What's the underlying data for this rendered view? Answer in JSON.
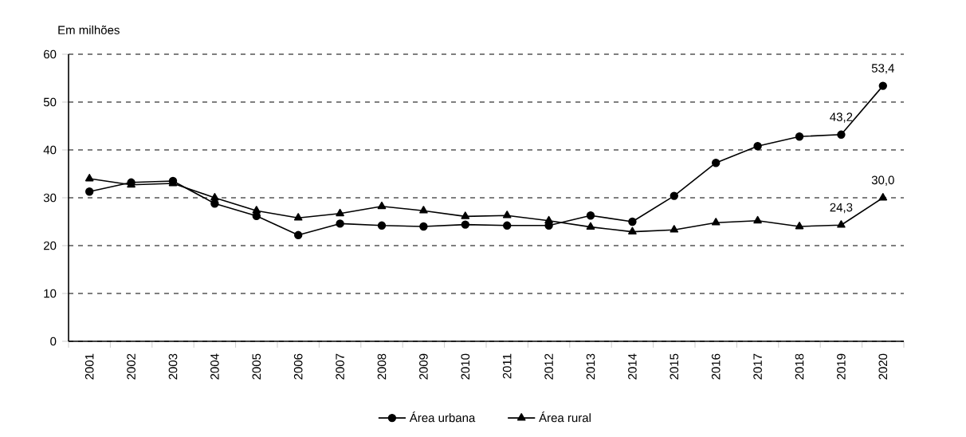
{
  "chart_data": {
    "type": "line",
    "ylabel": "Em milhões",
    "categories": [
      "2001",
      "2002",
      "2003",
      "2004",
      "2005",
      "2006",
      "2007",
      "2008",
      "2009",
      "2010",
      "2011",
      "2012",
      "2013",
      "2014",
      "2015",
      "2016",
      "2017",
      "2018",
      "2019",
      "2020"
    ],
    "series": [
      {
        "name": "Área urbana",
        "color": "#000000",
        "marker": "circle",
        "values": [
          31.3,
          33.2,
          33.5,
          28.8,
          26.2,
          22.2,
          24.6,
          24.2,
          24.0,
          24.4,
          24.2,
          24.2,
          26.3,
          25.0,
          30.4,
          37.3,
          40.8,
          42.8,
          43.2,
          53.4
        ],
        "value_labels": [
          null,
          null,
          null,
          null,
          null,
          null,
          null,
          null,
          null,
          null,
          null,
          null,
          null,
          null,
          null,
          null,
          null,
          null,
          "43,2",
          "53,4"
        ]
      },
      {
        "name": "Área rural",
        "color": "#000000",
        "marker": "triangle",
        "values": [
          34.0,
          32.7,
          33.0,
          30.0,
          27.3,
          25.8,
          26.7,
          28.2,
          27.3,
          26.1,
          26.3,
          25.2,
          23.9,
          22.9,
          23.3,
          24.8,
          25.2,
          24.0,
          24.3,
          30.0
        ],
        "value_labels": [
          null,
          null,
          null,
          null,
          null,
          null,
          null,
          null,
          null,
          null,
          null,
          null,
          null,
          null,
          null,
          null,
          null,
          null,
          "24,3",
          "30,0"
        ]
      }
    ],
    "ylim": [
      0,
      60
    ],
    "yticks": [
      0,
      10,
      20,
      30,
      40,
      50,
      60
    ],
    "grid": "y",
    "legend": "bottom",
    "line_style": "solid"
  }
}
